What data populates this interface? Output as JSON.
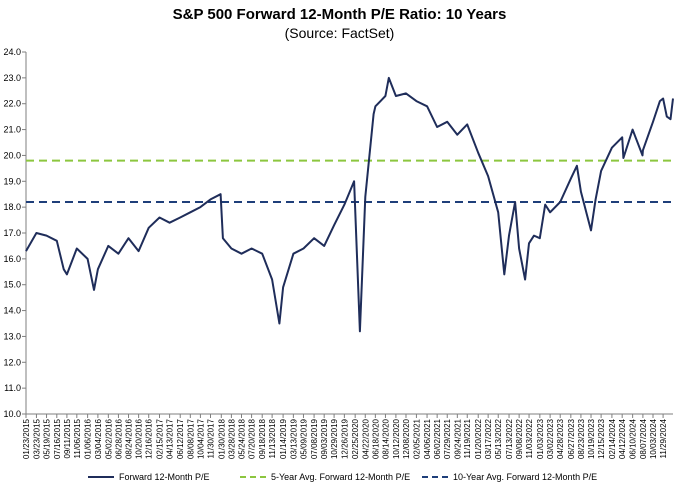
{
  "title": "S&P 500 Forward 12-Month P/E Ratio: 10 Years",
  "subtitle": "(Source: FactSet)",
  "colors": {
    "series": "#1f2d5a",
    "avg5": "#8cc63f",
    "avg10": "#1f3f7a",
    "axis": "#7f7f7f"
  },
  "chart_data": {
    "type": "line",
    "title": "S&P 500 Forward 12-Month P/E Ratio: 10 Years",
    "subtitle": "(Source: FactSet)",
    "ylim": [
      10.0,
      24.0
    ],
    "y_ticks": [
      "10.0",
      "11.0",
      "12.0",
      "13.0",
      "14.0",
      "15.0",
      "16.0",
      "17.0",
      "18.0",
      "19.0",
      "20.0",
      "21.0",
      "22.0",
      "23.0",
      "24.0"
    ],
    "x_tick_labels": [
      "01/23/2015",
      "03/23/2015",
      "05/19/2015",
      "07/16/2015",
      "09/11/2015",
      "11/06/2015",
      "01/06/2016",
      "03/04/2016",
      "05/02/2016",
      "06/28/2016",
      "08/24/2016",
      "10/20/2016",
      "12/16/2016",
      "02/15/2017",
      "04/13/2017",
      "06/12/2017",
      "08/08/2017",
      "10/04/2017",
      "11/30/2017",
      "01/30/2018",
      "03/28/2018",
      "05/24/2018",
      "07/20/2018",
      "09/18/2018",
      "11/13/2018",
      "01/14/2019",
      "03/13/2019",
      "05/09/2019",
      "07/08/2019",
      "09/03/2019",
      "10/29/2019",
      "12/26/2019",
      "02/25/2020",
      "04/22/2020",
      "06/18/2020",
      "08/14/2020",
      "10/12/2020",
      "12/08/2020",
      "02/05/2021",
      "04/06/2021",
      "06/02/2021",
      "07/29/2021",
      "09/24/2021",
      "11/19/2021",
      "01/20/2022",
      "03/17/2022",
      "05/13/2022",
      "07/13/2022",
      "09/08/2022",
      "11/03/2022",
      "01/03/2023",
      "03/02/2023",
      "04/28/2023",
      "06/27/2023",
      "08/23/2023",
      "10/19/2023",
      "12/15/2023",
      "02/14/2024",
      "04/12/2024",
      "06/10/2024",
      "08/07/2024",
      "10/03/2024",
      "11/29/2024"
    ],
    "grid": "none",
    "legend_position": "bottom",
    "series": [
      {
        "name": "Forward 12-Month P/E",
        "x": [
          "01/23/2015",
          "03/23/2015",
          "05/19/2015",
          "07/16/2015",
          "08/24/2015",
          "09/11/2015",
          "11/06/2015",
          "01/06/2016",
          "02/11/2016",
          "03/04/2016",
          "05/02/2016",
          "06/28/2016",
          "08/24/2016",
          "10/20/2016",
          "12/16/2016",
          "02/15/2017",
          "04/13/2017",
          "06/12/2017",
          "08/08/2017",
          "10/04/2017",
          "11/30/2017",
          "01/26/2018",
          "02/08/2018",
          "03/28/2018",
          "05/24/2018",
          "07/20/2018",
          "09/18/2018",
          "11/13/2018",
          "12/24/2018",
          "01/14/2019",
          "03/13/2019",
          "05/09/2019",
          "07/08/2019",
          "09/03/2019",
          "10/29/2019",
          "12/26/2019",
          "02/19/2020",
          "03/23/2020",
          "04/22/2020",
          "06/08/2020",
          "06/18/2020",
          "08/14/2020",
          "09/02/2020",
          "10/12/2020",
          "12/08/2020",
          "02/05/2021",
          "04/06/2021",
          "06/02/2021",
          "07/29/2021",
          "09/24/2021",
          "11/19/2021",
          "01/20/2022",
          "03/17/2022",
          "05/13/2022",
          "06/16/2022",
          "07/13/2022",
          "08/16/2022",
          "09/08/2022",
          "10/12/2022",
          "11/03/2022",
          "12/01/2022",
          "01/03/2023",
          "02/02/2023",
          "03/02/2023",
          "04/28/2023",
          "06/27/2023",
          "07/31/2023",
          "08/23/2023",
          "10/19/2023",
          "11/14/2023",
          "12/15/2023",
          "02/14/2024",
          "04/12/2024",
          "04/19/2024",
          "06/10/2024",
          "08/05/2024",
          "08/07/2024",
          "10/03/2024",
          "11/11/2024",
          "11/29/2024",
          "12/20/2024",
          "01/10/2025",
          "01/24/2025"
        ],
        "values": [
          16.3,
          17.0,
          16.9,
          16.7,
          15.6,
          15.4,
          16.4,
          16.0,
          14.8,
          15.6,
          16.5,
          16.2,
          16.8,
          16.3,
          17.2,
          17.6,
          17.4,
          17.6,
          17.8,
          18.0,
          18.3,
          18.5,
          16.8,
          16.4,
          16.2,
          16.4,
          16.2,
          15.2,
          13.5,
          14.9,
          16.2,
          16.4,
          16.8,
          16.5,
          17.3,
          18.1,
          19.0,
          13.2,
          18.4,
          21.6,
          21.9,
          22.3,
          23.0,
          22.3,
          22.4,
          22.1,
          21.9,
          21.1,
          21.3,
          20.8,
          21.2,
          20.1,
          19.2,
          17.8,
          15.4,
          16.9,
          18.2,
          16.4,
          15.2,
          16.6,
          16.9,
          16.8,
          18.1,
          17.8,
          18.2,
          19.1,
          19.6,
          18.6,
          17.1,
          18.3,
          19.4,
          20.3,
          20.7,
          19.9,
          21.0,
          20.0,
          20.2,
          21.3,
          22.1,
          22.2,
          21.5,
          21.4,
          22.2
        ]
      },
      {
        "name": "5-Year Avg. Forward 12-Month P/E",
        "x": [
          "01/23/2015",
          "01/24/2025"
        ],
        "values": [
          19.8,
          19.8
        ]
      },
      {
        "name": "10-Year Avg. Forward 12-Month P/E",
        "x": [
          "01/23/2015",
          "01/24/2025"
        ],
        "values": [
          18.2,
          18.2
        ]
      }
    ]
  }
}
